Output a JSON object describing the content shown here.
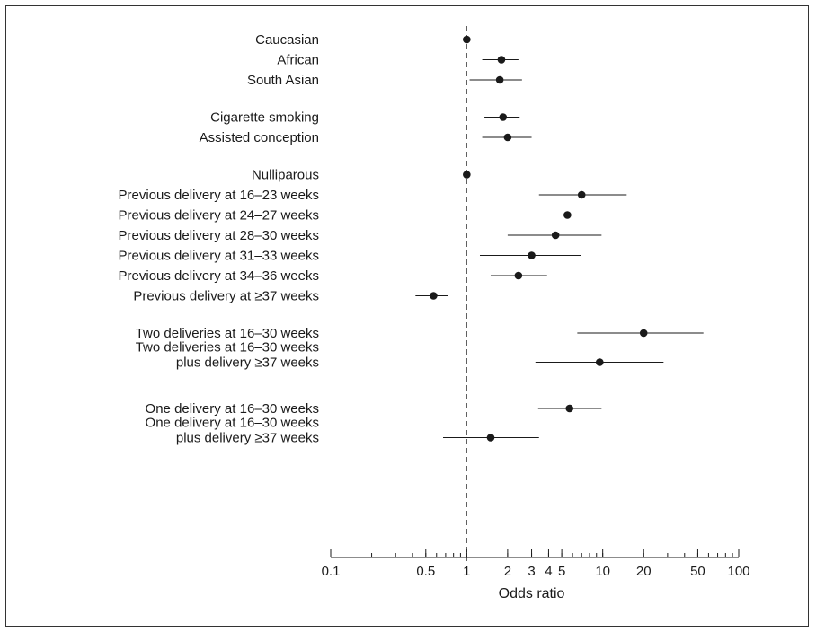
{
  "chart_data": {
    "type": "forest",
    "xlabel": "Odds ratio",
    "xscale": "log",
    "xlim": [
      0.1,
      100
    ],
    "reference_line": 1,
    "major_ticks": [
      0.1,
      0.5,
      1,
      2,
      3,
      4,
      5,
      10,
      20,
      50,
      100
    ],
    "major_tick_labels": [
      "0.1",
      "0.5",
      "1",
      "2",
      "3",
      "4",
      "5",
      "10",
      "20",
      "50",
      "100"
    ],
    "grid": false,
    "legend": "none",
    "rows": [
      {
        "label": [
          "Caucasian"
        ],
        "or": 1.0,
        "lo": 1.0,
        "hi": 1.0,
        "group": 0
      },
      {
        "label": [
          "African"
        ],
        "or": 1.8,
        "lo": 1.3,
        "hi": 2.4,
        "group": 0
      },
      {
        "label": [
          "South Asian"
        ],
        "or": 1.75,
        "lo": 1.05,
        "hi": 2.55,
        "group": 0
      },
      {
        "label": [
          "Cigarette smoking"
        ],
        "or": 1.85,
        "lo": 1.35,
        "hi": 2.45,
        "group": 1
      },
      {
        "label": [
          "Assisted conception"
        ],
        "or": 2.0,
        "lo": 1.3,
        "hi": 3.0,
        "group": 1
      },
      {
        "label": [
          "Nulliparous"
        ],
        "or": 1.0,
        "lo": 1.0,
        "hi": 1.0,
        "group": 2
      },
      {
        "label": [
          "Previous delivery at 16–23 weeks"
        ],
        "or": 7.0,
        "lo": 3.4,
        "hi": 15.0,
        "group": 2
      },
      {
        "label": [
          "Previous delivery at 24–27 weeks"
        ],
        "or": 5.5,
        "lo": 2.8,
        "hi": 10.5,
        "group": 2
      },
      {
        "label": [
          "Previous delivery at 28–30 weeks"
        ],
        "or": 4.5,
        "lo": 2.0,
        "hi": 9.8,
        "group": 2
      },
      {
        "label": [
          "Previous delivery at 31–33 weeks"
        ],
        "or": 3.0,
        "lo": 1.25,
        "hi": 6.9,
        "group": 2
      },
      {
        "label": [
          "Previous delivery at 34–36 weeks"
        ],
        "or": 2.4,
        "lo": 1.5,
        "hi": 3.9,
        "group": 2
      },
      {
        "label": [
          "Previous delivery at ≥37 weeks"
        ],
        "or": 0.57,
        "lo": 0.42,
        "hi": 0.73,
        "group": 2
      },
      {
        "label": [
          "Two deliveries at 16–30 weeks"
        ],
        "or": 20.0,
        "lo": 6.5,
        "hi": 55.0,
        "group": 3
      },
      {
        "label": [
          "Two deliveries at 16–30 weeks",
          "plus delivery ≥37 weeks"
        ],
        "or": 9.5,
        "lo": 3.2,
        "hi": 28.0,
        "group": 3
      },
      {
        "label": [
          "One delivery at 16–30 weeks"
        ],
        "or": 5.7,
        "lo": 3.35,
        "hi": 9.8,
        "group": 4
      },
      {
        "label": [
          "One delivery at 16–30 weeks",
          "plus delivery ≥37 weeks"
        ],
        "or": 1.5,
        "lo": 0.67,
        "hi": 3.4,
        "group": 4
      }
    ]
  },
  "colors": {
    "marker": "#1a1a1a",
    "line": "#1a1a1a",
    "reference": "#555555",
    "frame": "#333333"
  }
}
